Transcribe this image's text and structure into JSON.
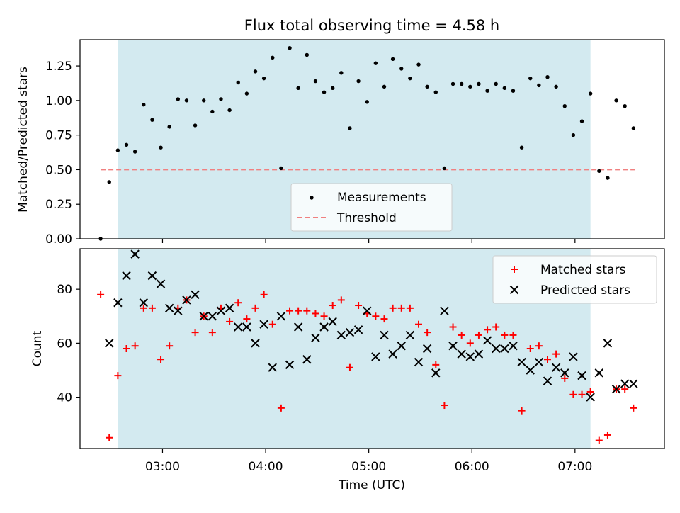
{
  "chart_data": [
    {
      "type": "scatter",
      "title": "Flux total observing time = 4.58 h",
      "ylabel": "Matched/Predicted stars",
      "xlim": [
        "02:12",
        "07:52"
      ],
      "ylim": [
        0,
        1.44
      ],
      "yticks": [
        "0.00",
        "0.25",
        "0.50",
        "0.75",
        "1.00",
        "1.25"
      ],
      "shaded_interval": [
        "02:34",
        "07:09"
      ],
      "shaded_color": "#d3eaf0",
      "threshold": {
        "name": "Threshold",
        "value": 0.5,
        "x_from": "02:24",
        "x_to": "07:35",
        "color": "#f08080"
      },
      "legend_position": "lower-center",
      "series": [
        {
          "name": "Measurements",
          "marker": "dot",
          "color": "#000000",
          "points": [
            [
              "02:24",
              0.0
            ],
            [
              "02:29",
              0.41
            ],
            [
              "02:34",
              0.64
            ],
            [
              "02:39",
              0.68
            ],
            [
              "02:44",
              0.63
            ],
            [
              "02:49",
              0.97
            ],
            [
              "02:54",
              0.86
            ],
            [
              "02:59",
              0.66
            ],
            [
              "03:04",
              0.81
            ],
            [
              "03:09",
              1.01
            ],
            [
              "03:14",
              1.0
            ],
            [
              "03:19",
              0.82
            ],
            [
              "03:24",
              1.0
            ],
            [
              "03:29",
              0.92
            ],
            [
              "03:34",
              1.01
            ],
            [
              "03:39",
              0.93
            ],
            [
              "03:44",
              1.13
            ],
            [
              "03:49",
              1.05
            ],
            [
              "03:54",
              1.21
            ],
            [
              "03:59",
              1.16
            ],
            [
              "04:04",
              1.31
            ],
            [
              "04:09",
              0.51
            ],
            [
              "04:14",
              1.38
            ],
            [
              "04:19",
              1.09
            ],
            [
              "04:24",
              1.33
            ],
            [
              "04:29",
              1.14
            ],
            [
              "04:34",
              1.06
            ],
            [
              "04:39",
              1.09
            ],
            [
              "04:44",
              1.2
            ],
            [
              "04:49",
              0.8
            ],
            [
              "04:54",
              1.14
            ],
            [
              "04:59",
              0.99
            ],
            [
              "05:04",
              1.27
            ],
            [
              "05:09",
              1.1
            ],
            [
              "05:14",
              1.3
            ],
            [
              "05:19",
              1.23
            ],
            [
              "05:24",
              1.16
            ],
            [
              "05:29",
              1.26
            ],
            [
              "05:34",
              1.1
            ],
            [
              "05:39",
              1.06
            ],
            [
              "05:44",
              0.51
            ],
            [
              "05:49",
              1.12
            ],
            [
              "05:54",
              1.12
            ],
            [
              "05:59",
              1.1
            ],
            [
              "06:04",
              1.12
            ],
            [
              "06:09",
              1.07
            ],
            [
              "06:14",
              1.12
            ],
            [
              "06:19",
              1.09
            ],
            [
              "06:24",
              1.07
            ],
            [
              "06:29",
              0.66
            ],
            [
              "06:34",
              1.16
            ],
            [
              "06:39",
              1.11
            ],
            [
              "06:44",
              1.17
            ],
            [
              "06:49",
              1.1
            ],
            [
              "06:54",
              0.96
            ],
            [
              "06:59",
              0.75
            ],
            [
              "07:04",
              0.85
            ],
            [
              "07:09",
              1.05
            ],
            [
              "07:14",
              0.49
            ],
            [
              "07:19",
              0.44
            ],
            [
              "07:24",
              1.0
            ],
            [
              "07:29",
              0.96
            ],
            [
              "07:34",
              0.8
            ]
          ]
        }
      ]
    },
    {
      "type": "scatter",
      "xlabel": "Time (UTC)",
      "ylabel": "Count",
      "xlim": [
        "02:12",
        "07:52"
      ],
      "ylim": [
        21,
        95
      ],
      "xticks": [
        "03:00",
        "04:00",
        "05:00",
        "06:00",
        "07:00"
      ],
      "yticks": [
        "40",
        "60",
        "80"
      ],
      "shaded_interval": [
        "02:34",
        "07:09"
      ],
      "shaded_color": "#d3eaf0",
      "legend_position": "top-right",
      "series": [
        {
          "name": "Matched stars",
          "marker": "plus",
          "color": "#ff0000",
          "points": [
            [
              "02:24",
              78
            ],
            [
              "02:29",
              25
            ],
            [
              "02:34",
              48
            ],
            [
              "02:39",
              58
            ],
            [
              "02:44",
              59
            ],
            [
              "02:49",
              73
            ],
            [
              "02:54",
              73
            ],
            [
              "02:59",
              54
            ],
            [
              "03:04",
              59
            ],
            [
              "03:09",
              73
            ],
            [
              "03:14",
              76
            ],
            [
              "03:19",
              64
            ],
            [
              "03:24",
              70
            ],
            [
              "03:29",
              64
            ],
            [
              "03:34",
              73
            ],
            [
              "03:39",
              68
            ],
            [
              "03:44",
              75
            ],
            [
              "03:49",
              69
            ],
            [
              "03:54",
              73
            ],
            [
              "03:59",
              78
            ],
            [
              "04:04",
              67
            ],
            [
              "04:09",
              36
            ],
            [
              "04:14",
              72
            ],
            [
              "04:19",
              72
            ],
            [
              "04:24",
              72
            ],
            [
              "04:29",
              71
            ],
            [
              "04:34",
              70
            ],
            [
              "04:39",
              74
            ],
            [
              "04:44",
              76
            ],
            [
              "04:49",
              51
            ],
            [
              "04:54",
              74
            ],
            [
              "04:59",
              71
            ],
            [
              "05:04",
              70
            ],
            [
              "05:09",
              69
            ],
            [
              "05:14",
              73
            ],
            [
              "05:19",
              73
            ],
            [
              "05:24",
              73
            ],
            [
              "05:29",
              67
            ],
            [
              "05:34",
              64
            ],
            [
              "05:39",
              52
            ],
            [
              "05:44",
              37
            ],
            [
              "05:49",
              66
            ],
            [
              "05:54",
              63
            ],
            [
              "05:59",
              60
            ],
            [
              "06:04",
              63
            ],
            [
              "06:09",
              65
            ],
            [
              "06:14",
              66
            ],
            [
              "06:19",
              63
            ],
            [
              "06:24",
              63
            ],
            [
              "06:29",
              35
            ],
            [
              "06:34",
              58
            ],
            [
              "06:39",
              59
            ],
            [
              "06:44",
              54
            ],
            [
              "06:49",
              56
            ],
            [
              "06:54",
              47
            ],
            [
              "06:59",
              41
            ],
            [
              "07:04",
              41
            ],
            [
              "07:09",
              42
            ],
            [
              "07:14",
              24
            ],
            [
              "07:19",
              26
            ],
            [
              "07:24",
              43
            ],
            [
              "07:29",
              43
            ],
            [
              "07:34",
              36
            ]
          ]
        },
        {
          "name": "Predicted stars",
          "marker": "x",
          "color": "#000000",
          "points": [
            [
              "02:29",
              60
            ],
            [
              "02:34",
              75
            ],
            [
              "02:39",
              85
            ],
            [
              "02:44",
              93
            ],
            [
              "02:49",
              75
            ],
            [
              "02:54",
              85
            ],
            [
              "02:59",
              82
            ],
            [
              "03:04",
              73
            ],
            [
              "03:09",
              72
            ],
            [
              "03:14",
              76
            ],
            [
              "03:19",
              78
            ],
            [
              "03:24",
              70
            ],
            [
              "03:29",
              70
            ],
            [
              "03:34",
              72
            ],
            [
              "03:39",
              73
            ],
            [
              "03:44",
              66
            ],
            [
              "03:49",
              66
            ],
            [
              "03:54",
              60
            ],
            [
              "03:59",
              67
            ],
            [
              "04:04",
              51
            ],
            [
              "04:09",
              70
            ],
            [
              "04:14",
              52
            ],
            [
              "04:19",
              66
            ],
            [
              "04:24",
              54
            ],
            [
              "04:29",
              62
            ],
            [
              "04:34",
              66
            ],
            [
              "04:39",
              68
            ],
            [
              "04:44",
              63
            ],
            [
              "04:49",
              64
            ],
            [
              "04:54",
              65
            ],
            [
              "04:59",
              72
            ],
            [
              "05:04",
              55
            ],
            [
              "05:09",
              63
            ],
            [
              "05:14",
              56
            ],
            [
              "05:19",
              59
            ],
            [
              "05:24",
              63
            ],
            [
              "05:29",
              53
            ],
            [
              "05:34",
              58
            ],
            [
              "05:39",
              49
            ],
            [
              "05:44",
              72
            ],
            [
              "05:49",
              59
            ],
            [
              "05:54",
              56
            ],
            [
              "05:59",
              55
            ],
            [
              "06:04",
              56
            ],
            [
              "06:09",
              61
            ],
            [
              "06:14",
              58
            ],
            [
              "06:19",
              58
            ],
            [
              "06:24",
              59
            ],
            [
              "06:29",
              53
            ],
            [
              "06:34",
              50
            ],
            [
              "06:39",
              53
            ],
            [
              "06:44",
              46
            ],
            [
              "06:49",
              51
            ],
            [
              "06:54",
              49
            ],
            [
              "06:59",
              55
            ],
            [
              "07:04",
              48
            ],
            [
              "07:09",
              40
            ],
            [
              "07:14",
              49
            ],
            [
              "07:19",
              60
            ],
            [
              "07:24",
              43
            ],
            [
              "07:29",
              45
            ],
            [
              "07:34",
              45
            ]
          ]
        }
      ]
    }
  ]
}
